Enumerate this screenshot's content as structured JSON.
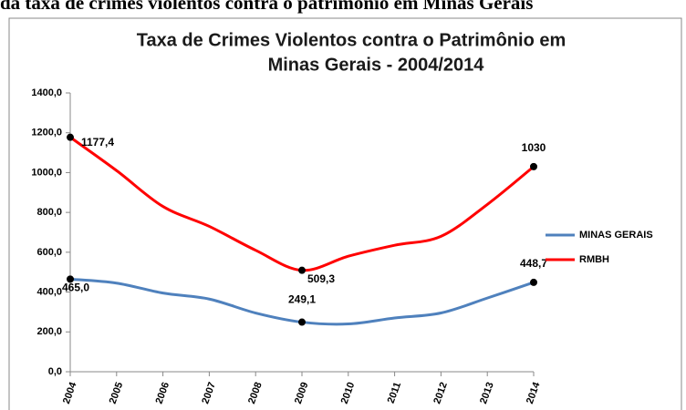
{
  "caption": "da taxa de crimes violentos contra o patrimônio em Minas Gerais",
  "chart_data": {
    "type": "line",
    "title": [
      "Taxa de Crimes Violentos contra o Patrimônio em",
      "Minas Gerais - 2004/2014"
    ],
    "categories": [
      "2004",
      "2005",
      "2006",
      "2007",
      "2008",
      "2009",
      "2010",
      "2011",
      "2012",
      "2013",
      "2014"
    ],
    "series": [
      {
        "name": "MINAS GERAIS",
        "color": "#4f81bd",
        "values": [
          465.0,
          445,
          395,
          365,
          295,
          249.1,
          240,
          270,
          295,
          370,
          448.7
        ],
        "value_labels": [
          "465,0",
          null,
          null,
          null,
          null,
          "249,1",
          null,
          null,
          null,
          null,
          "448,7"
        ]
      },
      {
        "name": "RMBH",
        "color": "#ff0000",
        "values": [
          1177.4,
          1010,
          830,
          730,
          610,
          509.3,
          580,
          635,
          680,
          840,
          1030
        ],
        "value_labels": [
          "1177,4",
          null,
          null,
          null,
          null,
          "509,3",
          null,
          null,
          null,
          null,
          "1030"
        ]
      }
    ],
    "ylim": [
      0,
      1400
    ],
    "yticks": [
      {
        "value": 0,
        "label": "0,0"
      },
      {
        "value": 200,
        "label": "200,0"
      },
      {
        "value": 400,
        "label": "400,0"
      },
      {
        "value": 600,
        "label": "600,0"
      },
      {
        "value": 800,
        "label": "800,0"
      },
      {
        "value": 1000,
        "label": "1000,0"
      },
      {
        "value": 1200,
        "label": "1200,0"
      },
      {
        "value": 1400,
        "label": "1400,0"
      }
    ],
    "grid": false,
    "legend": "right"
  }
}
